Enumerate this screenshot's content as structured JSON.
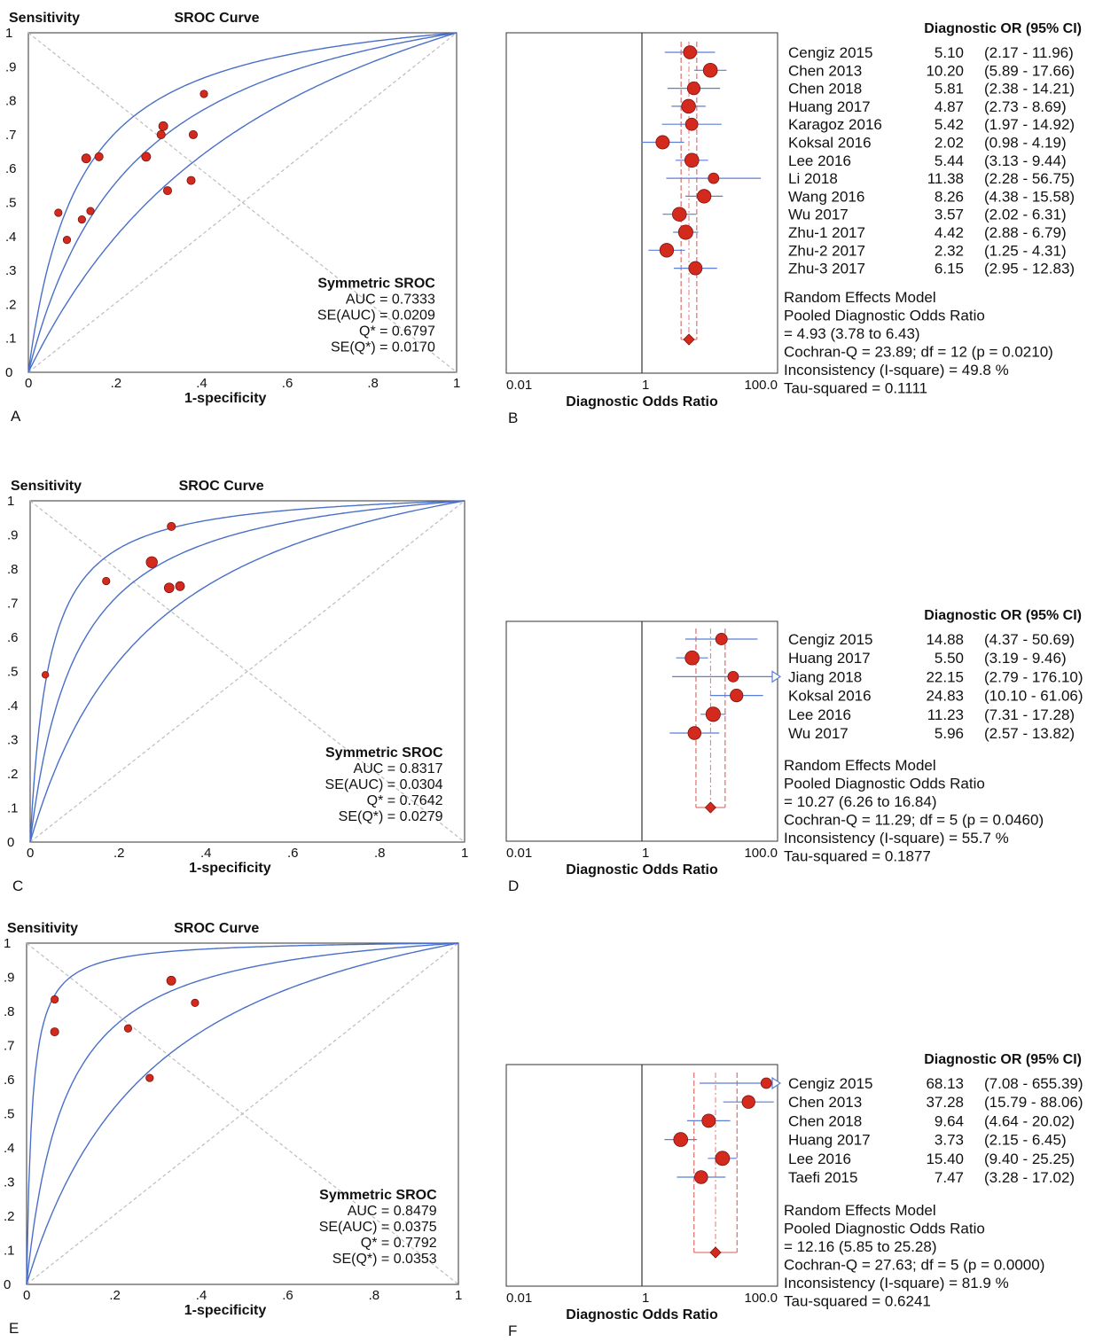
{
  "chart_data": [
    {
      "panel": "A",
      "type": "scatter",
      "title": "SROC Curve",
      "xlabel": "1-specificity",
      "ylabel": "Sensitivity",
      "xlim": [
        0,
        1
      ],
      "ylim": [
        0,
        1
      ],
      "xticks": [
        "0",
        ".2",
        ".4",
        ".6",
        ".8",
        "1"
      ],
      "yticks": [
        "0",
        ".1",
        ".2",
        ".3",
        ".4",
        ".5",
        ".6",
        ".7",
        ".8",
        ".9",
        "1"
      ],
      "points": [
        {
          "x": 0.07,
          "y": 0.47,
          "s": 1
        },
        {
          "x": 0.09,
          "y": 0.39,
          "s": 1
        },
        {
          "x": 0.125,
          "y": 0.45,
          "s": 1
        },
        {
          "x": 0.145,
          "y": 0.475,
          "s": 1
        },
        {
          "x": 0.135,
          "y": 0.63,
          "s": 1.2
        },
        {
          "x": 0.165,
          "y": 0.635,
          "s": 1.1
        },
        {
          "x": 0.275,
          "y": 0.635,
          "s": 1.2
        },
        {
          "x": 0.31,
          "y": 0.7,
          "s": 1.1
        },
        {
          "x": 0.315,
          "y": 0.725,
          "s": 1.2
        },
        {
          "x": 0.325,
          "y": 0.535,
          "s": 1.1
        },
        {
          "x": 0.38,
          "y": 0.565,
          "s": 1.1
        },
        {
          "x": 0.385,
          "y": 0.7,
          "s": 1.1
        },
        {
          "x": 0.41,
          "y": 0.82,
          "s": 1
        }
      ],
      "curve_dors": [
        2.6,
        4.93,
        9.4
      ],
      "summary_title": "Symmetric SROC",
      "summary_lines": [
        "AUC = 0.7333",
        "SE(AUC) = 0.0209",
        "Q* = 0.6797",
        "SE(Q*) = 0.0170"
      ],
      "panel_label": "A"
    },
    {
      "panel": "B",
      "type": "forest",
      "header": "Diagnostic OR (95% CI)",
      "xlabel": "Diagnostic Odds Ratio",
      "xticks": [
        "0.01",
        "1",
        "100.0"
      ],
      "xscale": "log",
      "studies": [
        {
          "name": "Cengiz 2015",
          "or": 5.1,
          "lo": 2.17,
          "hi": 11.96,
          "ci": "(2.17 - 11.96)",
          "or_text": "5.10"
        },
        {
          "name": "Chen 2013",
          "or": 10.2,
          "lo": 5.89,
          "hi": 17.66,
          "ci": "(5.89 - 17.66)",
          "or_text": "10.20"
        },
        {
          "name": "Chen 2018",
          "or": 5.81,
          "lo": 2.38,
          "hi": 14.21,
          "ci": "(2.38 - 14.21)",
          "or_text": "5.81"
        },
        {
          "name": "Huang 2017",
          "or": 4.87,
          "lo": 2.73,
          "hi": 8.69,
          "ci": "(2.73 - 8.69)",
          "or_text": "4.87"
        },
        {
          "name": "Karagoz 2016",
          "or": 5.42,
          "lo": 1.97,
          "hi": 14.92,
          "ci": "(1.97 - 14.92)",
          "or_text": "5.42"
        },
        {
          "name": "Koksal 2016",
          "or": 2.02,
          "lo": 0.98,
          "hi": 4.19,
          "ci": "(0.98 - 4.19)",
          "or_text": "2.02"
        },
        {
          "name": "Lee 2016",
          "or": 5.44,
          "lo": 3.13,
          "hi": 9.44,
          "ci": "(3.13 - 9.44)",
          "or_text": "5.44"
        },
        {
          "name": "Li 2018",
          "or": 11.38,
          "lo": 2.28,
          "hi": 56.75,
          "ci": "(2.28 - 56.75)",
          "or_text": "11.38"
        },
        {
          "name": "Wang 2016",
          "or": 8.26,
          "lo": 4.38,
          "hi": 15.58,
          "ci": "(4.38 - 15.58)",
          "or_text": "8.26"
        },
        {
          "name": "Wu 2017",
          "or": 3.57,
          "lo": 2.02,
          "hi": 6.31,
          "ci": "(2.02 - 6.31)",
          "or_text": "3.57"
        },
        {
          "name": "Zhu-1 2017",
          "or": 4.42,
          "lo": 2.88,
          "hi": 6.79,
          "ci": "(2.88 - 6.79)",
          "or_text": "4.42"
        },
        {
          "name": "Zhu-2 2017",
          "or": 2.32,
          "lo": 1.25,
          "hi": 4.31,
          "ci": "(1.25 - 4.31)",
          "or_text": "2.32"
        },
        {
          "name": "Zhu-3 2017",
          "or": 6.15,
          "lo": 2.95,
          "hi": 12.83,
          "ci": "(2.95 - 12.83)",
          "or_text": "6.15"
        }
      ],
      "pooled": {
        "or": 4.93,
        "lo": 3.78,
        "hi": 6.43
      },
      "summary_lines": [
        "Random Effects Model",
        "Pooled Diagnostic Odds Ratio",
        "= 4.93 (3.78 to 6.43)",
        "Cochran-Q = 23.89; df =  12 (p = 0.0210)",
        "Inconsistency (I-square) = 49.8 %",
        "Tau-squared = 0.1111"
      ],
      "panel_label": "B"
    },
    {
      "panel": "C",
      "type": "scatter",
      "title": "SROC Curve",
      "xlabel": "1-specificity",
      "ylabel": "Sensitivity",
      "xlim": [
        0,
        1
      ],
      "ylim": [
        0,
        1
      ],
      "xticks": [
        "0",
        ".2",
        ".4",
        ".6",
        ".8",
        "1"
      ],
      "yticks": [
        "0",
        ".1",
        ".2",
        ".3",
        ".4",
        ".5",
        ".6",
        ".7",
        ".8",
        ".9",
        "1"
      ],
      "points": [
        {
          "x": 0.035,
          "y": 0.49,
          "s": 0.9
        },
        {
          "x": 0.175,
          "y": 0.765,
          "s": 1.0
        },
        {
          "x": 0.28,
          "y": 0.82,
          "s": 1.5
        },
        {
          "x": 0.32,
          "y": 0.745,
          "s": 1.3
        },
        {
          "x": 0.345,
          "y": 0.75,
          "s": 1.2
        },
        {
          "x": 0.325,
          "y": 0.925,
          "s": 1.1
        }
      ],
      "curve_dors": [
        4.4,
        10.27,
        24.0
      ],
      "summary_title": "Symmetric SROC",
      "summary_lines": [
        "AUC = 0.8317",
        "SE(AUC) = 0.0304",
        "Q* = 0.7642",
        "SE(Q*) = 0.0279"
      ],
      "panel_label": "C"
    },
    {
      "panel": "D",
      "type": "forest",
      "header": "Diagnostic OR (95% CI)",
      "xlabel": "Diagnostic Odds Ratio",
      "xticks": [
        "0.01",
        "1",
        "100.0"
      ],
      "xscale": "log",
      "studies": [
        {
          "name": "Cengiz 2015",
          "or": 14.88,
          "lo": 4.37,
          "hi": 50.69,
          "ci": "(4.37 - 50.69)",
          "or_text": "14.88"
        },
        {
          "name": "Huang 2017",
          "or": 5.5,
          "lo": 3.19,
          "hi": 9.46,
          "ci": "(3.19 - 9.46)",
          "or_text": "5.50"
        },
        {
          "name": "Jiang 2018",
          "or": 22.15,
          "lo": 2.79,
          "hi": 176.1,
          "ci": "(2.79 - 176.10)",
          "or_text": "22.15"
        },
        {
          "name": "Koksal 2016",
          "or": 24.83,
          "lo": 10.1,
          "hi": 61.06,
          "ci": "(10.10 - 61.06)",
          "or_text": "24.83"
        },
        {
          "name": "Lee 2016",
          "or": 11.23,
          "lo": 7.31,
          "hi": 17.28,
          "ci": "(7.31 - 17.28)",
          "or_text": "11.23"
        },
        {
          "name": "Wu 2017",
          "or": 5.96,
          "lo": 2.57,
          "hi": 13.82,
          "ci": "(2.57 - 13.82)",
          "or_text": "5.96"
        }
      ],
      "pooled": {
        "or": 10.27,
        "lo": 6.26,
        "hi": 16.84
      },
      "summary_lines": [
        "Random Effects Model",
        "Pooled Diagnostic Odds Ratio",
        "= 10.27 (6.26 to 16.84)",
        "Cochran-Q = 11.29; df =  5 (p = 0.0460)",
        "Inconsistency (I-square) = 55.7 %",
        "Tau-squared = 0.1877"
      ],
      "panel_label": "D"
    },
    {
      "panel": "E",
      "type": "scatter",
      "title": "SROC Curve",
      "xlabel": "1-specificity",
      "ylabel": "Sensitivity",
      "xlim": [
        0,
        1
      ],
      "ylim": [
        0,
        1
      ],
      "xticks": [
        "0",
        ".2",
        ".4",
        ".6",
        ".8",
        "1"
      ],
      "yticks": [
        "0",
        ".1",
        ".2",
        ".3",
        ".4",
        ".5",
        ".6",
        ".7",
        ".8",
        ".9",
        "1"
      ],
      "points": [
        {
          "x": 0.065,
          "y": 0.835,
          "s": 1.0
        },
        {
          "x": 0.065,
          "y": 0.74,
          "s": 1.1
        },
        {
          "x": 0.235,
          "y": 0.75,
          "s": 1.0
        },
        {
          "x": 0.285,
          "y": 0.605,
          "s": 1.0
        },
        {
          "x": 0.335,
          "y": 0.89,
          "s": 1.2
        },
        {
          "x": 0.39,
          "y": 0.825,
          "s": 1.0
        }
      ],
      "curve_dors": [
        4.2,
        12.16,
        80.0
      ],
      "summary_title": "Symmetric SROC",
      "summary_lines": [
        "AUC = 0.8479",
        "SE(AUC) = 0.0375",
        "Q* = 0.7792",
        "SE(Q*) = 0.0353"
      ],
      "panel_label": "E"
    },
    {
      "panel": "F",
      "type": "forest",
      "header": "Diagnostic OR (95% CI)",
      "xlabel": "Diagnostic Odds Ratio",
      "xticks": [
        "0.01",
        "1",
        "100.0"
      ],
      "xscale": "log",
      "studies": [
        {
          "name": "Cengiz 2015",
          "or": 68.13,
          "lo": 7.08,
          "hi": 655.39,
          "ci": "(7.08 - 655.39)",
          "or_text": "68.13"
        },
        {
          "name": "Chen 2013",
          "or": 37.28,
          "lo": 15.79,
          "hi": 88.06,
          "ci": "(15.79 - 88.06)",
          "or_text": "37.28"
        },
        {
          "name": "Chen 2018",
          "or": 9.64,
          "lo": 4.64,
          "hi": 20.02,
          "ci": "(4.64 - 20.02)",
          "or_text": "9.64"
        },
        {
          "name": "Huang 2017",
          "or": 3.73,
          "lo": 2.15,
          "hi": 6.45,
          "ci": "(2.15 - 6.45)",
          "or_text": "3.73"
        },
        {
          "name": "Lee 2016",
          "or": 15.4,
          "lo": 9.4,
          "hi": 25.25,
          "ci": "(9.40 - 25.25)",
          "or_text": "15.40"
        },
        {
          "name": "Taefi 2015",
          "or": 7.47,
          "lo": 3.28,
          "hi": 17.02,
          "ci": "(3.28 - 17.02)",
          "or_text": "7.47"
        }
      ],
      "pooled": {
        "or": 12.16,
        "lo": 5.85,
        "hi": 25.28
      },
      "summary_lines": [
        "Random Effects Model",
        "Pooled Diagnostic Odds Ratio",
        "= 12.16 (5.85 to 25.28)",
        "Cochran-Q = 27.63; df =  5 (p = 0.0000)",
        "Inconsistency (I-square) = 81.9 %",
        "Tau-squared = 0.6241"
      ],
      "panel_label": "F"
    }
  ],
  "colors": {
    "curve": "#4a6fc9",
    "point_fill": "#d42a1e",
    "point_stroke": "#7a1410",
    "ci_line": "#5b7fd6",
    "pooled_dash": "#e07a7a",
    "diag": "#bdbdbd"
  }
}
